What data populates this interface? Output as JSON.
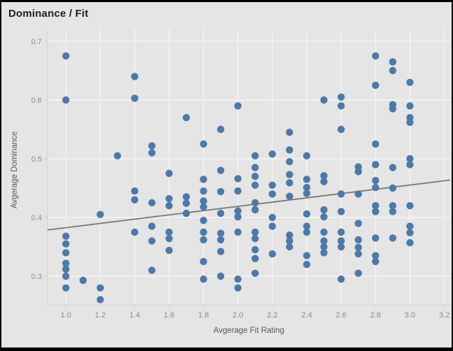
{
  "window": {
    "title": "Dominance / Fit"
  },
  "chart_data": {
    "type": "scatter",
    "title": "Dominance / Fit",
    "xlabel": "Avgerage Fit Rating",
    "ylabel": "Avgerage Dominance",
    "x_ticks": [
      "1.0",
      "1.2",
      "1.4",
      "1.6",
      "1.8",
      "2.0",
      "2.2",
      "2.4",
      "2.6",
      "2.8",
      "3.0",
      "3.2"
    ],
    "x_tick_values": [
      1.0,
      1.2,
      1.4,
      1.6,
      1.8,
      2.0,
      2.2,
      2.4,
      2.6,
      2.8,
      3.0,
      3.2
    ],
    "y_ticks": [
      "0.3",
      "0.4",
      "0.5",
      "0.6",
      "0.7"
    ],
    "y_tick_values": [
      0.3,
      0.4,
      0.5,
      0.6,
      0.7
    ],
    "xlim": [
      0.893,
      3.234
    ],
    "ylim": [
      0.2512,
      0.7107
    ],
    "grid": true,
    "legend": "none",
    "point_radius": 5.2,
    "points": [
      [
        1.0,
        0.675
      ],
      [
        1.0,
        0.6
      ],
      [
        1.0,
        0.368
      ],
      [
        1.0,
        0.355
      ],
      [
        1.0,
        0.34
      ],
      [
        1.0,
        0.322
      ],
      [
        1.0,
        0.312
      ],
      [
        1.0,
        0.3
      ],
      [
        1.0,
        0.28
      ],
      [
        1.1,
        0.293
      ],
      [
        1.2,
        0.405
      ],
      [
        1.2,
        0.28
      ],
      [
        1.2,
        0.26
      ],
      [
        1.3,
        0.505
      ],
      [
        1.4,
        0.64
      ],
      [
        1.4,
        0.603
      ],
      [
        1.4,
        0.445
      ],
      [
        1.4,
        0.43
      ],
      [
        1.4,
        0.375
      ],
      [
        1.5,
        0.522
      ],
      [
        1.5,
        0.51
      ],
      [
        1.5,
        0.425
      ],
      [
        1.5,
        0.385
      ],
      [
        1.5,
        0.36
      ],
      [
        1.5,
        0.31
      ],
      [
        1.6,
        0.475
      ],
      [
        1.6,
        0.432
      ],
      [
        1.6,
        0.42
      ],
      [
        1.6,
        0.375
      ],
      [
        1.6,
        0.364
      ],
      [
        1.6,
        0.344
      ],
      [
        1.7,
        0.57
      ],
      [
        1.7,
        0.435
      ],
      [
        1.7,
        0.424
      ],
      [
        1.7,
        0.407
      ],
      [
        1.8,
        0.525
      ],
      [
        1.8,
        0.465
      ],
      [
        1.8,
        0.445
      ],
      [
        1.8,
        0.428
      ],
      [
        1.8,
        0.418
      ],
      [
        1.8,
        0.395
      ],
      [
        1.8,
        0.375
      ],
      [
        1.8,
        0.362
      ],
      [
        1.8,
        0.325
      ],
      [
        1.8,
        0.295
      ],
      [
        1.9,
        0.55
      ],
      [
        1.9,
        0.48
      ],
      [
        1.9,
        0.444
      ],
      [
        1.9,
        0.407
      ],
      [
        1.9,
        0.373
      ],
      [
        1.9,
        0.362
      ],
      [
        1.9,
        0.342
      ],
      [
        1.9,
        0.3
      ],
      [
        2.0,
        0.59
      ],
      [
        2.0,
        0.466
      ],
      [
        2.0,
        0.445
      ],
      [
        2.0,
        0.411
      ],
      [
        2.0,
        0.401
      ],
      [
        2.0,
        0.375
      ],
      [
        2.0,
        0.295
      ],
      [
        2.0,
        0.28
      ],
      [
        2.1,
        0.505
      ],
      [
        2.1,
        0.485
      ],
      [
        2.1,
        0.47
      ],
      [
        2.1,
        0.455
      ],
      [
        2.1,
        0.425
      ],
      [
        2.1,
        0.413
      ],
      [
        2.1,
        0.375
      ],
      [
        2.1,
        0.364
      ],
      [
        2.1,
        0.345
      ],
      [
        2.1,
        0.33
      ],
      [
        2.1,
        0.305
      ],
      [
        2.2,
        0.508
      ],
      [
        2.2,
        0.455
      ],
      [
        2.2,
        0.44
      ],
      [
        2.2,
        0.4
      ],
      [
        2.2,
        0.385
      ],
      [
        2.2,
        0.338
      ],
      [
        2.3,
        0.545
      ],
      [
        2.3,
        0.515
      ],
      [
        2.3,
        0.495
      ],
      [
        2.3,
        0.473
      ],
      [
        2.3,
        0.459
      ],
      [
        2.3,
        0.436
      ],
      [
        2.3,
        0.37
      ],
      [
        2.3,
        0.36
      ],
      [
        2.3,
        0.35
      ],
      [
        2.4,
        0.505
      ],
      [
        2.4,
        0.465
      ],
      [
        2.4,
        0.451
      ],
      [
        2.4,
        0.441
      ],
      [
        2.4,
        0.406
      ],
      [
        2.4,
        0.385
      ],
      [
        2.4,
        0.375
      ],
      [
        2.4,
        0.335
      ],
      [
        2.4,
        0.32
      ],
      [
        2.5,
        0.6
      ],
      [
        2.5,
        0.471
      ],
      [
        2.5,
        0.461
      ],
      [
        2.5,
        0.413
      ],
      [
        2.5,
        0.401
      ],
      [
        2.5,
        0.375
      ],
      [
        2.5,
        0.36
      ],
      [
        2.5,
        0.35
      ],
      [
        2.5,
        0.34
      ],
      [
        2.6,
        0.605
      ],
      [
        2.6,
        0.59
      ],
      [
        2.6,
        0.55
      ],
      [
        2.6,
        0.44
      ],
      [
        2.6,
        0.41
      ],
      [
        2.6,
        0.375
      ],
      [
        2.6,
        0.36
      ],
      [
        2.6,
        0.35
      ],
      [
        2.6,
        0.295
      ],
      [
        2.7,
        0.486
      ],
      [
        2.7,
        0.478
      ],
      [
        2.7,
        0.44
      ],
      [
        2.7,
        0.39
      ],
      [
        2.7,
        0.362
      ],
      [
        2.7,
        0.349
      ],
      [
        2.7,
        0.338
      ],
      [
        2.7,
        0.305
      ],
      [
        2.8,
        0.675
      ],
      [
        2.8,
        0.625
      ],
      [
        2.8,
        0.525
      ],
      [
        2.8,
        0.49
      ],
      [
        2.8,
        0.463
      ],
      [
        2.8,
        0.451
      ],
      [
        2.8,
        0.42
      ],
      [
        2.8,
        0.41
      ],
      [
        2.8,
        0.365
      ],
      [
        2.8,
        0.335
      ],
      [
        2.8,
        0.325
      ],
      [
        2.9,
        0.665
      ],
      [
        2.9,
        0.65
      ],
      [
        2.9,
        0.592
      ],
      [
        2.9,
        0.585
      ],
      [
        2.9,
        0.485
      ],
      [
        2.9,
        0.45
      ],
      [
        2.9,
        0.42
      ],
      [
        2.9,
        0.41
      ],
      [
        2.9,
        0.365
      ],
      [
        3.0,
        0.63
      ],
      [
        3.0,
        0.59
      ],
      [
        3.0,
        0.57
      ],
      [
        3.0,
        0.562
      ],
      [
        3.0,
        0.5
      ],
      [
        3.0,
        0.49
      ],
      [
        3.0,
        0.42
      ],
      [
        3.0,
        0.385
      ],
      [
        3.0,
        0.374
      ],
      [
        3.0,
        0.357
      ]
    ],
    "trend_line": {
      "x1": 0.893,
      "y1": 0.3787,
      "x2": 3.234,
      "y2": 0.4637
    },
    "colors": {
      "background": "#e5e5e5",
      "plot_background": "#e5e5e5",
      "gridline": "#f5f5f5",
      "axis_rule": "#d4d4d4",
      "tick_mark": "#c6c6c6",
      "point": "#4e79a7",
      "trend_line": "#787878",
      "title": "#1e1e1e",
      "tick_label": "#8a8a8a",
      "axis_title": "#575757",
      "frame": "#000000"
    }
  }
}
